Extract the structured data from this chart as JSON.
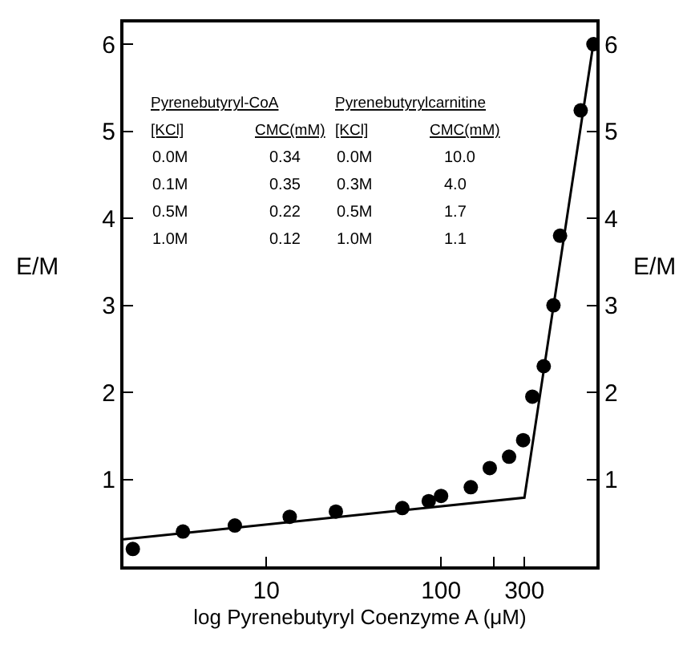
{
  "chart_data": {
    "type": "scatter",
    "xlabel": "log Pyrenebutyryl Coenzyme A (μM)",
    "ylabel": "E/M",
    "y2label": "E/M",
    "log": "x",
    "xlim": [
      1.52,
      775
    ],
    "xticks": [
      10,
      100,
      {
        "value": 200,
        "label": null
      },
      300
    ],
    "ylim": [
      0,
      6.25
    ],
    "yticks": [
      1,
      2,
      3,
      4,
      5,
      6
    ],
    "y2lim": [
      0,
      6.25
    ],
    "y2ticks": [
      1,
      2,
      3,
      4,
      5,
      6
    ],
    "series": [
      {
        "marker": "circle",
        "color": "#000000",
        "x": [
          1.72,
          3.33,
          6.6,
          13.6,
          25,
          60,
          85,
          100,
          148,
          190,
          245,
          295,
          333,
          387,
          440,
          480,
          630,
          745
        ],
        "values": [
          0.2,
          0.4,
          0.47,
          0.57,
          0.63,
          0.67,
          0.75,
          0.81,
          0.91,
          1.13,
          1.26,
          1.45,
          1.95,
          2.3,
          3.0,
          3.8,
          5.24,
          6.0
        ]
      },
      {
        "type": "line",
        "line_style": "solid",
        "color": "#000000",
        "x": [
          1.52,
          300,
          750
        ],
        "values": [
          0.31,
          0.79,
          6.05
        ]
      }
    ],
    "annotations": [
      "Pyrenebutyryl-CoA",
      "Pyrenebutyrylcarnitine",
      "[KCl]",
      "CMC(mM)",
      "[KCl]",
      "CMC(mM)",
      "0.0M",
      "0.34",
      "0.0M",
      "10.0",
      "0.1M",
      "0.35",
      "0.3M",
      "4.0",
      "0.5M",
      "0.22",
      "0.5M",
      "1.7",
      "1.0M",
      "0.12",
      "1.0M",
      "1.1"
    ]
  }
}
